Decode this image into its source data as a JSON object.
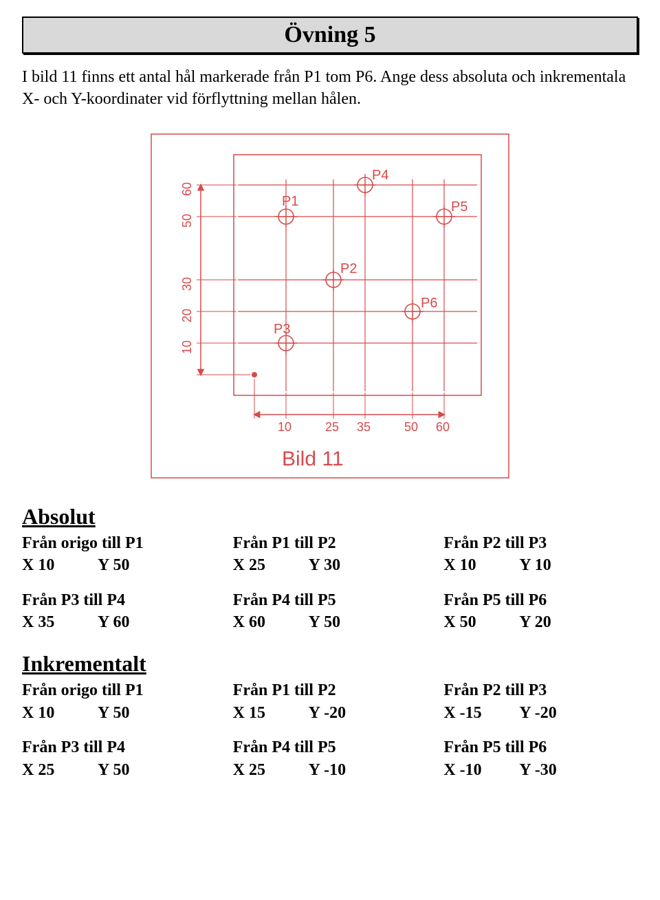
{
  "title": "Övning 5",
  "intro": "I bild 11 finns ett antal hål markerade från P1 tom P6. Ange dess absoluta och inkrementala X- och Y-koordinater vid förflyttning mellan hålen.",
  "diagram": {
    "stroke": "#d84a4a",
    "text_color": "#d84a4a",
    "bg": "#ffffff",
    "caption": "Bild 11",
    "x_ticks": [
      "10",
      "25",
      "35",
      "50",
      "60"
    ],
    "y_ticks": [
      "10",
      "20",
      "30",
      "50",
      "60"
    ],
    "points": {
      "P1": {
        "x": 10,
        "y": 50
      },
      "P2": {
        "x": 25,
        "y": 30
      },
      "P3": {
        "x": 10,
        "y": 10
      },
      "P4": {
        "x": 35,
        "y": 60
      },
      "P5": {
        "x": 60,
        "y": 50
      },
      "P6": {
        "x": 50,
        "y": 20
      }
    },
    "point_label_offset": {
      "P1": {
        "dx": -6,
        "dy": -16
      },
      "P2": {
        "dx": 10,
        "dy": -10
      },
      "P3": {
        "dx": -18,
        "dy": -14
      },
      "P4": {
        "dx": 10,
        "dy": -8
      },
      "P5": {
        "dx": 10,
        "dy": -8
      },
      "P6": {
        "dx": 12,
        "dy": -6
      }
    }
  },
  "absolut": {
    "heading": "Absolut",
    "rows": [
      [
        {
          "label": "Från origo till P1",
          "x": "X  10",
          "y": "Y  50"
        },
        {
          "label": "Från P1 till P2",
          "x": "X  25",
          "y": "Y  30"
        },
        {
          "label": "Från P2 till P3",
          "x": "X  10",
          "y": "Y  10"
        }
      ],
      [
        {
          "label": "Från P3 till P4",
          "x": "X  35",
          "y": "Y  60"
        },
        {
          "label": "Från P4 till P5",
          "x": "X  60",
          "y": "Y  50"
        },
        {
          "label": "Från P5 till P6",
          "x": "X  50",
          "y": "Y  20"
        }
      ]
    ]
  },
  "inkrementalt": {
    "heading": "Inkrementalt",
    "rows": [
      [
        {
          "label": "Från origo till P1",
          "x": "X  10",
          "y": "Y  50"
        },
        {
          "label": "Från P1 till P2",
          "x": "X  15",
          "y": "Y  -20"
        },
        {
          "label": "Från P2 till P3",
          "x": "X  -15",
          "y": "Y  -20"
        }
      ],
      [
        {
          "label": "Från P3 till P4",
          "x": "X  25",
          "y": "Y  50"
        },
        {
          "label": "Från P4 till P5",
          "x": "X  25",
          "y": "Y  -10"
        },
        {
          "label": "Från P5 till P6",
          "x": "X  -10",
          "y": "Y  -30"
        }
      ]
    ]
  }
}
